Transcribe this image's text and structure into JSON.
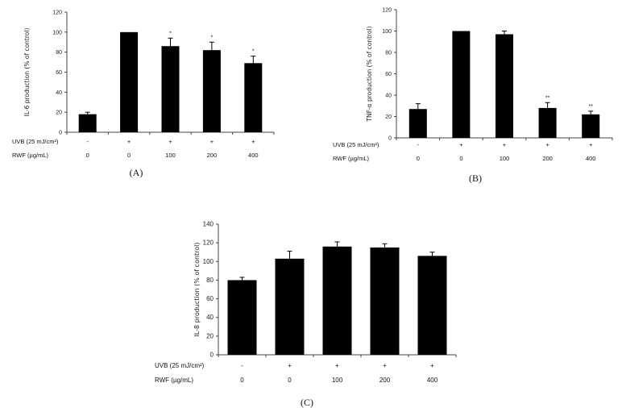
{
  "chart_data": [
    {
      "type": "bar",
      "panel_label": "(A)",
      "ylabel": "IL-6 production (% of control)",
      "ylim": [
        0,
        120
      ],
      "yticks": [
        "0",
        "20",
        "40",
        "60",
        "80",
        "100",
        "120"
      ],
      "values": [
        18,
        100,
        86,
        82,
        69
      ],
      "errors": [
        2,
        0,
        8,
        8,
        7
      ],
      "significance": [
        "",
        "",
        "*",
        "*",
        "*"
      ],
      "uvb_label": "UVB (25 mJ/cm²)",
      "uvb_values": [
        "-",
        "+",
        "+",
        "+",
        "+"
      ],
      "rwf_label": "RWF (µg/mL)",
      "rwf_values": [
        "0",
        "0",
        "100",
        "200",
        "400"
      ]
    },
    {
      "type": "bar",
      "panel_label": "(B)",
      "ylabel": "TNF-α production (% of control)",
      "ylim": [
        0,
        120
      ],
      "yticks": [
        "0",
        "20",
        "40",
        "60",
        "80",
        "100",
        "120"
      ],
      "values": [
        27,
        100,
        97,
        28,
        22
      ],
      "errors": [
        5,
        0,
        3,
        5,
        3
      ],
      "significance": [
        "",
        "",
        "",
        "**",
        "**"
      ],
      "uvb_label": "UVB (25 mJ/cm²)",
      "uvb_values": [
        "-",
        "+",
        "+",
        "+",
        "+"
      ],
      "rwf_label": "RWF (µg/mL)",
      "rwf_values": [
        "0",
        "0",
        "100",
        "200",
        "400"
      ]
    },
    {
      "type": "bar",
      "panel_label": "(C)",
      "ylabel": "IL-8 production (% of control)",
      "ylim": [
        0,
        140
      ],
      "yticks": [
        "0",
        "20",
        "40",
        "60",
        "80",
        "100",
        "120",
        "140"
      ],
      "values": [
        80,
        103,
        116,
        115,
        106
      ],
      "errors": [
        3,
        8,
        5,
        4,
        4
      ],
      "significance": [
        "",
        "",
        "",
        "",
        ""
      ],
      "uvb_label": "UVB (25 mJ/cm²)",
      "uvb_values": [
        "-",
        "+",
        "+",
        "+",
        "+"
      ],
      "rwf_label": "RWF (µg/mL)",
      "rwf_values": [
        "0",
        "0",
        "100",
        "200",
        "400"
      ]
    }
  ]
}
